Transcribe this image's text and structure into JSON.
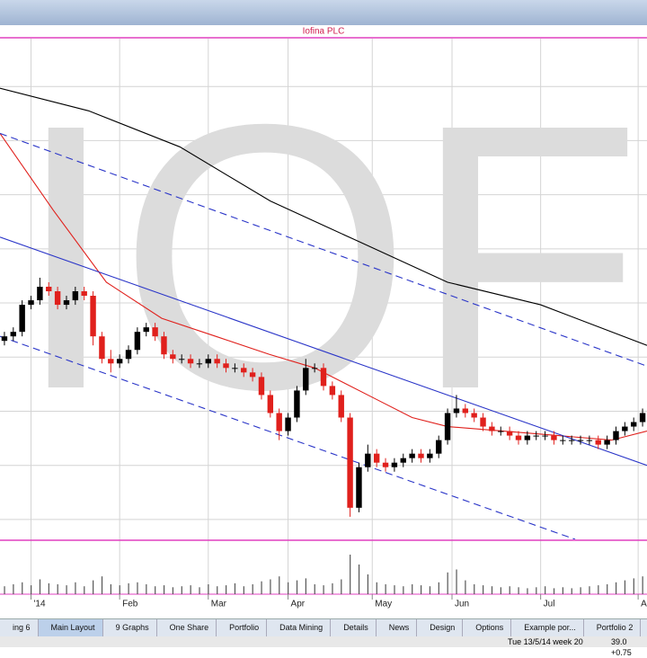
{
  "window": {
    "tabs": [
      "ing 6",
      "Main Layout",
      "9 Graphs",
      "One Share",
      "Portfolio",
      "Data Mining",
      "Details",
      "News",
      "Design",
      "Options",
      "Example por...",
      "Portfolio 2"
    ],
    "active_tab": 1,
    "status": [
      "Tue 13/5/14  week 20",
      "39.0  +0.75"
    ]
  },
  "chart_data": {
    "type": "candlestick",
    "title": "Iofina PLC",
    "watermark": "IOF",
    "up_color": "#000000",
    "down_color": "#e0201c",
    "xlim": [
      0,
      146
    ],
    "ylim": [
      0,
      111
    ],
    "xticks": [
      {
        "value": 7,
        "label": "'14"
      },
      {
        "value": 27,
        "label": "Feb"
      },
      {
        "value": 47,
        "label": "Mar"
      },
      {
        "value": 65,
        "label": "Apr"
      },
      {
        "value": 84,
        "label": "May"
      },
      {
        "value": 102,
        "label": "Jun"
      },
      {
        "value": 122,
        "label": "Jul"
      },
      {
        "value": 144,
        "label": "Aug"
      }
    ],
    "yticks": [
      4.4,
      16.4,
      28.4,
      40.4,
      52.4,
      64.4,
      76.4,
      88.4,
      100.4
    ],
    "grid": true,
    "x": [
      1,
      3,
      5,
      7,
      9,
      11,
      13,
      15,
      17,
      19,
      21,
      23,
      25,
      27,
      29,
      31,
      33,
      35,
      37,
      39,
      41,
      43,
      45,
      47,
      49,
      51,
      53,
      55,
      57,
      59,
      61,
      63,
      65,
      67,
      69,
      71,
      73,
      75,
      77,
      79,
      81,
      83,
      85,
      87,
      89,
      91,
      93,
      95,
      97,
      99,
      101,
      103,
      105,
      107,
      109,
      111,
      113,
      115,
      117,
      119,
      121,
      123,
      125,
      127,
      129,
      131,
      133,
      135,
      137,
      139,
      141,
      143,
      145
    ],
    "open": [
      44,
      45,
      46,
      52,
      53,
      56,
      55,
      52,
      53,
      55,
      54,
      45,
      40,
      39,
      40,
      42,
      46,
      47,
      45,
      41,
      40,
      40,
      39,
      39,
      40,
      39,
      38,
      38,
      37,
      36,
      32,
      28,
      24,
      27,
      33,
      38,
      38,
      34,
      32,
      27,
      7,
      16,
      19,
      17,
      16,
      17,
      18,
      19,
      18,
      19,
      22,
      28,
      29,
      28,
      27,
      25,
      24,
      24,
      23,
      22,
      23,
      23,
      23,
      22,
      22,
      22,
      22,
      22,
      21,
      22,
      24,
      25,
      26
    ],
    "high": [
      46,
      47,
      53,
      54,
      58,
      57,
      56,
      54,
      56,
      56,
      55,
      46,
      42,
      41,
      43,
      47,
      48,
      48,
      46,
      42,
      41,
      41,
      40,
      41,
      41,
      40,
      39,
      39,
      38,
      37,
      33,
      29,
      28,
      34,
      40,
      39,
      39,
      35,
      33,
      28,
      17,
      21,
      20,
      18,
      18,
      19,
      20,
      20,
      20,
      23,
      29,
      32,
      30,
      29,
      28,
      26,
      25,
      25,
      24,
      24,
      24,
      24,
      24,
      23,
      23,
      23,
      23,
      23,
      23,
      25,
      26,
      27,
      29
    ],
    "low": [
      43,
      44,
      45,
      51,
      52,
      54,
      51,
      51,
      52,
      53,
      43,
      39,
      37,
      38,
      39,
      41,
      45,
      44,
      40,
      39,
      39,
      38,
      38,
      38,
      38,
      37,
      37,
      36,
      35,
      31,
      27,
      22,
      23,
      26,
      32,
      37,
      33,
      31,
      26,
      5,
      6,
      15,
      16,
      15,
      15,
      16,
      17,
      17,
      17,
      18,
      21,
      27,
      27,
      26,
      24,
      23,
      23,
      22,
      21,
      21,
      22,
      22,
      21,
      21,
      21,
      21,
      21,
      20,
      20,
      21,
      23,
      24,
      25
    ],
    "close": [
      45,
      46,
      52,
      53,
      56,
      55,
      52,
      53,
      55,
      54,
      45,
      40,
      39,
      40,
      42,
      46,
      47,
      45,
      41,
      40,
      40,
      39,
      39,
      40,
      39,
      38,
      38,
      37,
      36,
      32,
      28,
      24,
      27,
      33,
      38,
      38,
      34,
      32,
      27,
      7,
      16,
      19,
      17,
      16,
      17,
      18,
      19,
      18,
      19,
      22,
      28,
      29,
      28,
      27,
      25,
      24,
      24,
      23,
      22,
      23,
      23,
      23,
      22,
      22,
      22,
      22,
      22,
      21,
      22,
      24,
      25,
      26,
      28
    ],
    "volume": [
      8,
      10,
      12,
      9,
      15,
      11,
      10,
      9,
      12,
      8,
      14,
      18,
      10,
      9,
      11,
      12,
      10,
      8,
      9,
      7,
      8,
      9,
      7,
      10,
      8,
      9,
      11,
      8,
      10,
      13,
      15,
      18,
      12,
      14,
      16,
      10,
      9,
      11,
      15,
      40,
      30,
      20,
      12,
      10,
      9,
      8,
      10,
      9,
      8,
      12,
      22,
      25,
      14,
      10,
      9,
      8,
      7,
      8,
      7,
      6,
      7,
      8,
      6,
      7,
      6,
      7,
      8,
      9,
      10,
      12,
      14,
      16,
      18
    ],
    "volume_ylim": [
      0,
      50
    ],
    "volume_color": "#555555",
    "overlays": [
      {
        "color": "#000000",
        "dash": false,
        "x": [
          0,
          20,
          40.6,
          61,
          81,
          101,
          122,
          146
        ],
        "values": [
          100,
          95,
          87,
          75,
          66,
          57,
          52,
          43
        ]
      },
      {
        "color": "#e0201c",
        "dash": false,
        "x": [
          0,
          12,
          24,
          36.5,
          48.7,
          60.8,
          71,
          77,
          85,
          93,
          101,
          113.6,
          126,
          138,
          146
        ],
        "values": [
          90,
          73,
          57,
          49,
          45,
          41,
          38,
          35,
          31,
          27,
          25,
          24,
          23,
          22,
          24
        ]
      },
      {
        "color": "#2a35c8",
        "dash": false,
        "x": [
          0,
          146
        ],
        "values": [
          67,
          16.4
        ]
      },
      {
        "color": "#2a35c8",
        "dash": true,
        "x": [
          0,
          146
        ],
        "values": [
          90,
          38.4
        ]
      },
      {
        "color": "#2a35c8",
        "dash": true,
        "x": [
          0,
          129.8
        ],
        "values": [
          45,
          0
        ]
      }
    ]
  }
}
